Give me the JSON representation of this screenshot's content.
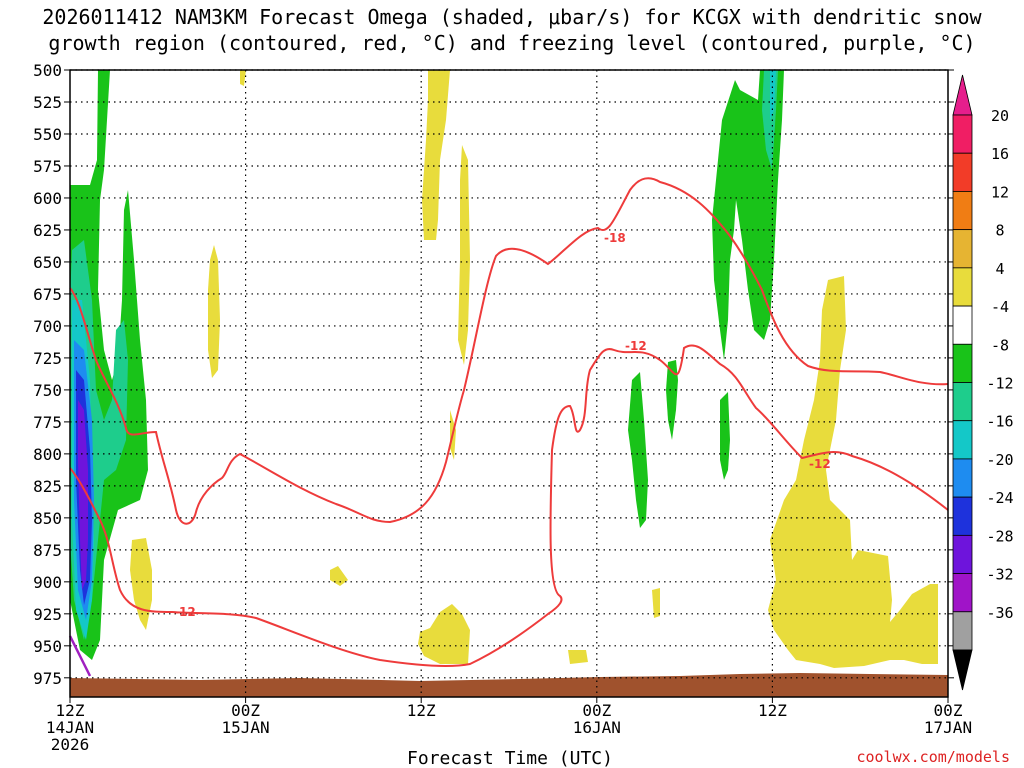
{
  "chart_data": {
    "type": "time-height cross section",
    "title_line1": "2026011412 NAM3KM Forecast Omega (shaded, μbar/s) for KCGX with dendritic snow",
    "title_line2": "growth region (contoured, red, °C) and freezing level (contoured, purple, °C)",
    "xlabel": "Forecast Time (UTC)",
    "ylabel": "Pressure (mb)",
    "credit": "coolwx.com/models",
    "x_ticks": [
      {
        "hour": 0,
        "line1": "12Z",
        "line2": "14JAN",
        "line3": "2026"
      },
      {
        "hour": 12,
        "line1": "00Z",
        "line2": "15JAN",
        "line3": ""
      },
      {
        "hour": 24,
        "line1": "12Z",
        "line2": "",
        "line3": ""
      },
      {
        "hour": 36,
        "line1": "00Z",
        "line2": "16JAN",
        "line3": ""
      },
      {
        "hour": 48,
        "line1": "12Z",
        "line2": "",
        "line3": ""
      },
      {
        "hour": 60,
        "line1": "00Z",
        "line2": "17JAN",
        "line3": ""
      }
    ],
    "xlim": [
      0,
      60
    ],
    "y_ticks": [
      500,
      525,
      550,
      575,
      600,
      625,
      650,
      675,
      700,
      725,
      750,
      775,
      800,
      825,
      850,
      875,
      900,
      925,
      950,
      975
    ],
    "ylim": [
      500,
      990
    ],
    "colorbar": {
      "labels": [
        "20",
        "16",
        "12",
        "8",
        "4",
        "-4",
        "-8",
        "-12",
        "-16",
        "-20",
        "-24",
        "-28",
        "-32",
        "-36"
      ],
      "colors": [
        "#f01e64",
        "#f23c28",
        "#f07d14",
        "#e6b432",
        "#e8dc3c",
        "#ffffff",
        "#19c319",
        "#1ecd8c",
        "#14c8c8",
        "#1e8cf0",
        "#1e32dc",
        "#6e14dc",
        "#a014c8",
        "#a0a0a0"
      ],
      "top_arrow_color": "#e61e8c",
      "bottom_arrow_color": "#000000"
    },
    "contour_labels": [
      {
        "text": "-18",
        "hour": 36.8,
        "p": 600
      },
      {
        "text": "-12",
        "hour": 37.6,
        "p": 680
      },
      {
        "text": "-12",
        "hour": 50.6,
        "p": 767
      },
      {
        "text": "-12",
        "hour": 7.9,
        "p": 918
      }
    ],
    "colors": {
      "dgz_contour": "#ee3b3b",
      "freezing_contour": "#a020c0",
      "terrain": "#a0522d",
      "grid": "#000000"
    }
  }
}
